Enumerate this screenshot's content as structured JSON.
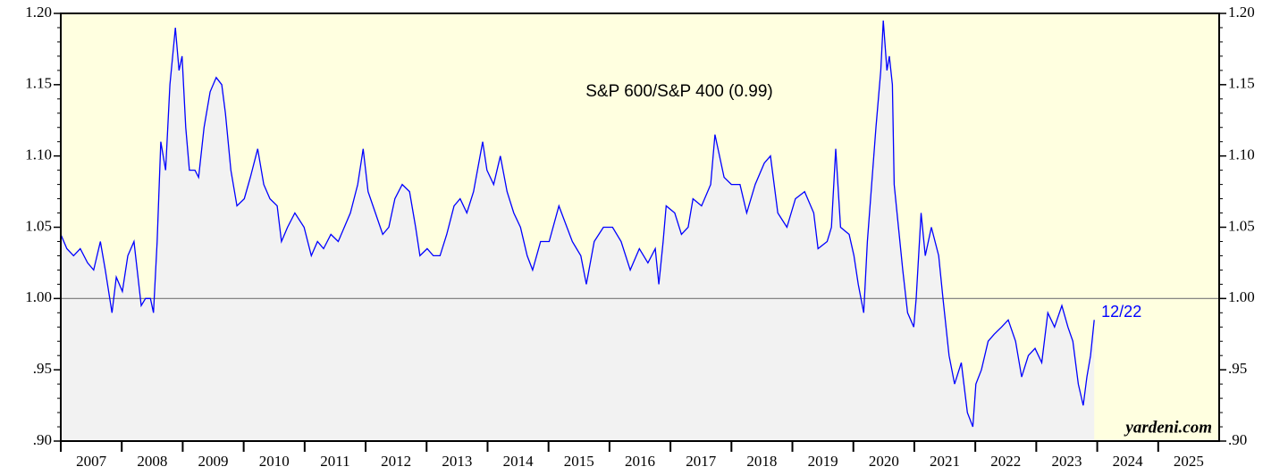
{
  "chart_data": {
    "type": "line",
    "title": "S&P 600/S&P 400 (0.99)",
    "end_label": "12/22",
    "source": "yardeni.com",
    "series": [
      {
        "name": "S&P 600/S&P 400",
        "color": "#0000ff",
        "x": [
          2007.0,
          2007.1,
          2007.21,
          2007.32,
          2007.44,
          2007.54,
          2007.65,
          2007.73,
          2007.84,
          2007.91,
          2008.01,
          2008.1,
          2008.2,
          2008.28,
          2008.32,
          2008.39,
          2008.47,
          2008.52,
          2008.58,
          2008.64,
          2008.72,
          2008.79,
          2008.88,
          2008.94,
          2008.99,
          2009.05,
          2009.11,
          2009.2,
          2009.26,
          2009.35,
          2009.45,
          2009.55,
          2009.64,
          2009.7,
          2009.79,
          2009.89,
          2010.01,
          2010.11,
          2010.23,
          2010.33,
          2010.43,
          2010.55,
          2010.62,
          2010.72,
          2010.84,
          2010.99,
          2011.11,
          2011.21,
          2011.31,
          2011.43,
          2011.55,
          2011.65,
          2011.75,
          2011.87,
          2011.96,
          2012.04,
          2012.16,
          2012.28,
          2012.38,
          2012.48,
          2012.6,
          2012.72,
          2012.82,
          2012.89,
          2013.01,
          2013.11,
          2013.22,
          2013.33,
          2013.45,
          2013.55,
          2013.66,
          2013.77,
          2013.92,
          2013.99,
          2014.1,
          2014.21,
          2014.32,
          2014.43,
          2014.54,
          2014.65,
          2014.74,
          2014.87,
          2015.01,
          2015.17,
          2015.39,
          2015.53,
          2015.62,
          2015.75,
          2015.9,
          2016.05,
          2016.19,
          2016.34,
          2016.49,
          2016.63,
          2016.75,
          2016.81,
          2016.88,
          2016.93,
          2017.07,
          2017.18,
          2017.29,
          2017.37,
          2017.51,
          2017.66,
          2017.73,
          2017.88,
          2018.0,
          2018.14,
          2018.25,
          2018.39,
          2018.54,
          2018.64,
          2018.76,
          2018.91,
          2019.05,
          2019.2,
          2019.35,
          2019.42,
          2019.57,
          2019.64,
          2019.71,
          2019.79,
          2019.93,
          2020.01,
          2020.08,
          2020.17,
          2020.23,
          2020.3,
          2020.37,
          2020.45,
          2020.49,
          2020.55,
          2020.59,
          2020.64,
          2020.67,
          2020.74,
          2020.81,
          2020.89,
          2020.99,
          2021.03,
          2021.11,
          2021.18,
          2021.28,
          2021.4,
          2021.47,
          2021.57,
          2021.66,
          2021.77,
          2021.87,
          2021.96,
          2022.01,
          2022.1,
          2022.21,
          2022.31,
          2022.43,
          2022.54,
          2022.66,
          2022.76,
          2022.87,
          2022.98,
          2023.09,
          2023.19,
          2023.3,
          2023.42,
          2023.52,
          2023.6,
          2023.69,
          2023.77,
          2023.83,
          2023.89,
          2023.95
        ],
        "values": [
          1.045,
          1.035,
          1.03,
          1.035,
          1.025,
          1.02,
          1.04,
          1.02,
          0.99,
          1.015,
          1.005,
          1.03,
          1.04,
          1.01,
          0.995,
          1.0,
          1.0,
          0.99,
          1.04,
          1.11,
          1.09,
          1.15,
          1.19,
          1.16,
          1.17,
          1.12,
          1.09,
          1.09,
          1.085,
          1.12,
          1.145,
          1.155,
          1.15,
          1.13,
          1.09,
          1.065,
          1.07,
          1.085,
          1.105,
          1.08,
          1.07,
          1.065,
          1.04,
          1.05,
          1.06,
          1.05,
          1.03,
          1.04,
          1.035,
          1.045,
          1.04,
          1.05,
          1.06,
          1.08,
          1.105,
          1.075,
          1.06,
          1.045,
          1.05,
          1.07,
          1.08,
          1.075,
          1.05,
          1.03,
          1.035,
          1.03,
          1.03,
          1.045,
          1.065,
          1.07,
          1.06,
          1.075,
          1.11,
          1.09,
          1.08,
          1.1,
          1.075,
          1.06,
          1.05,
          1.03,
          1.02,
          1.04,
          1.04,
          1.065,
          1.04,
          1.03,
          1.01,
          1.04,
          1.05,
          1.05,
          1.04,
          1.02,
          1.035,
          1.025,
          1.035,
          1.01,
          1.04,
          1.065,
          1.06,
          1.045,
          1.05,
          1.07,
          1.065,
          1.08,
          1.115,
          1.085,
          1.08,
          1.08,
          1.06,
          1.08,
          1.095,
          1.1,
          1.06,
          1.05,
          1.07,
          1.075,
          1.06,
          1.035,
          1.04,
          1.05,
          1.105,
          1.05,
          1.045,
          1.03,
          1.01,
          0.99,
          1.04,
          1.08,
          1.12,
          1.16,
          1.195,
          1.16,
          1.17,
          1.15,
          1.08,
          1.05,
          1.02,
          0.99,
          0.98,
          1.0,
          1.06,
          1.03,
          1.05,
          1.03,
          1.0,
          0.96,
          0.94,
          0.955,
          0.92,
          0.91,
          0.94,
          0.95,
          0.97,
          0.975,
          0.98,
          0.985,
          0.97,
          0.945,
          0.96,
          0.965,
          0.955,
          0.99,
          0.98,
          0.995,
          0.98,
          0.97,
          0.94,
          0.925,
          0.945,
          0.96,
          0.985
        ]
      }
    ],
    "hline": 1,
    "xlim": [
      2007,
      2026
    ],
    "xticks": [
      2007,
      2008,
      2009,
      2010,
      2011,
      2012,
      2013,
      2014,
      2015,
      2016,
      2017,
      2018,
      2019,
      2020,
      2021,
      2022,
      2023,
      2024,
      2025
    ],
    "ylim": [
      0.9,
      1.2
    ],
    "yticks": [
      {
        "value": 0.9,
        "label": ".90"
      },
      {
        "value": 0.95,
        "label": ".95"
      },
      {
        "value": 1.0,
        "label": "1.00"
      },
      1.05,
      {
        "value": 1.1,
        "label": "1.10"
      },
      1.15,
      {
        "value": 1.2,
        "label": "1.20"
      }
    ],
    "plot_background": "#ffffe0",
    "area_color": "#f2f2f2"
  }
}
